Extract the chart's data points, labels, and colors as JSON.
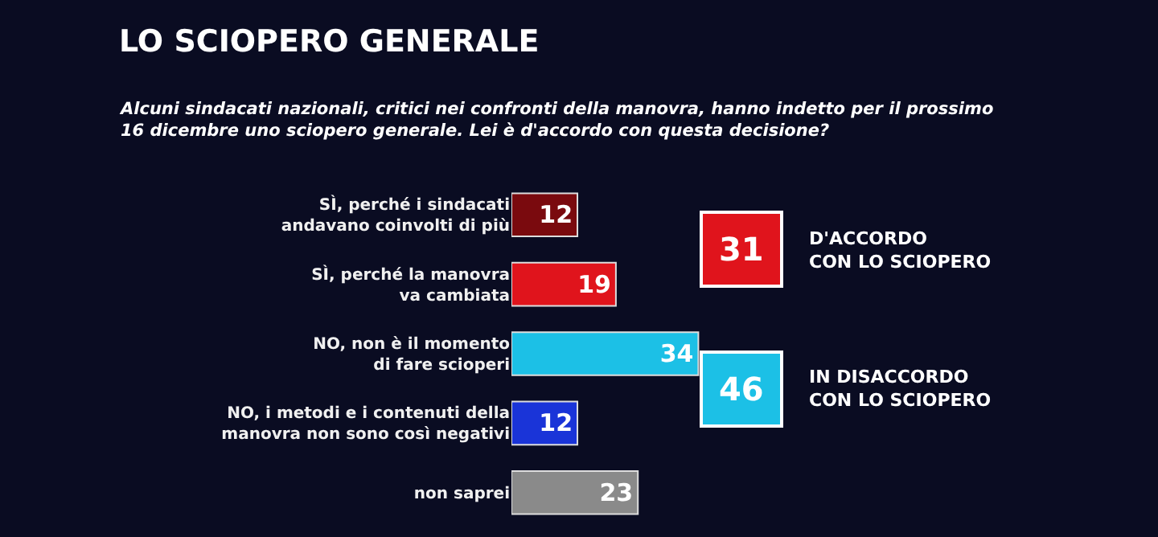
{
  "chart_data": {
    "type": "bar",
    "orientation": "horizontal",
    "title": "LO SCIOPERO GENERALE",
    "subtitle": "Alcuni sindacati nazionali, critici nei confronti della manovra, hanno indetto per il prossimo\n16 dicembre uno sciopero generale. Lei è d'accordo con questa decisione?",
    "categories": [
      "SÌ, perché i sindacati\nandavano coinvolti di più",
      "SÌ, perché la manovra\nva cambiata",
      "NO, non è il momento\ndi fare scioperi",
      "NO, i metodi e i contenuti della\nmanovra non sono così negativi",
      "non saprei"
    ],
    "values": [
      12,
      19,
      34,
      12,
      23
    ],
    "colors": [
      "#7a0a0e",
      "#e0141c",
      "#1cc0e6",
      "#1a34d8",
      "#8a8a8a"
    ],
    "data_labels": true,
    "annotations": [
      "31",
      "D'ACCORDO\nCON LO SCIOPERO",
      "46",
      "IN DISACCORDO\nCON LO SCIOPERO"
    ]
  }
}
